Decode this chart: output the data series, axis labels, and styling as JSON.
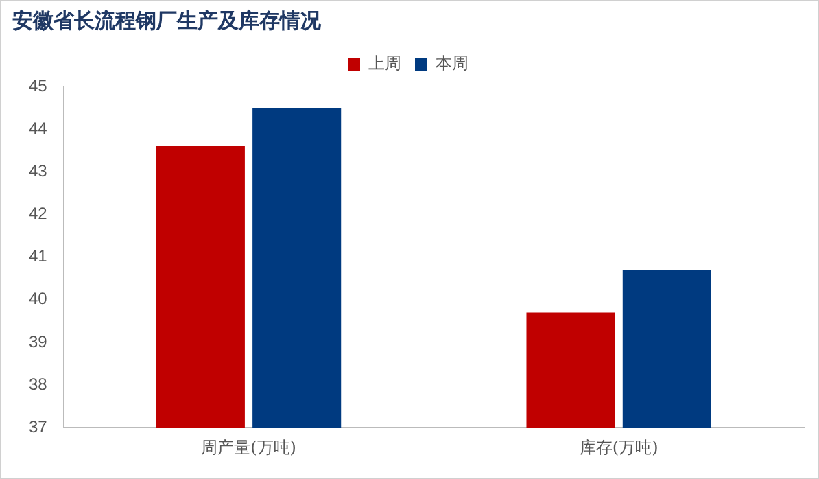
{
  "chart_data": {
    "type": "bar",
    "title": "安徽省长流程钢厂生产及库存情况",
    "categories": [
      "周产量(万吨)",
      "库存(万吨)"
    ],
    "series": [
      {
        "name": "上周",
        "color": "#c00000",
        "values": [
          43.6,
          39.7
        ]
      },
      {
        "name": "本周",
        "color": "#003a80",
        "values": [
          44.5,
          40.7
        ]
      }
    ],
    "ylim": [
      37,
      45
    ],
    "yticks": [
      37,
      38,
      39,
      40,
      41,
      42,
      43,
      44,
      45
    ],
    "grid": false,
    "legend": "top"
  }
}
